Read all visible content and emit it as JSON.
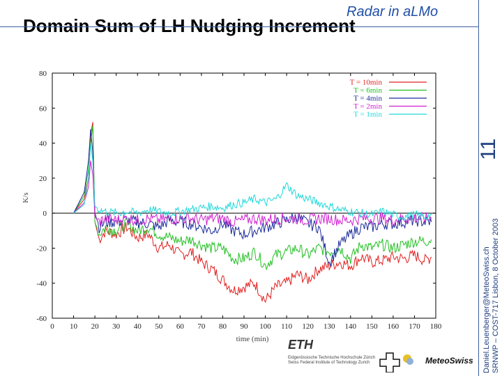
{
  "slide": {
    "title": "Domain Sum of LH Nudging Increment",
    "subtitle": "Radar in aLMo",
    "page_number": "11",
    "footer_email": "Daniel.Leuenberger@MeteoSwiss.ch",
    "footer_event": "SRNWP – COST-717 Lisbon, 8 October 2003",
    "logo_eth": "ETH",
    "logo_eth_sub1": "Eidgenössische Technische Hochschule Zürich",
    "logo_eth_sub2": "Swiss Federal Institute of Technology Zurich",
    "logo_meteoswiss": "MeteoSwiss"
  },
  "chart_data": {
    "type": "line",
    "title": "",
    "xlabel": "time (min)",
    "ylabel": "K/s",
    "xlim": [
      0,
      180
    ],
    "ylim": [
      -60,
      80
    ],
    "xticks": [
      0,
      10,
      20,
      30,
      40,
      50,
      60,
      70,
      80,
      90,
      100,
      110,
      120,
      130,
      140,
      150,
      160,
      170,
      180
    ],
    "yticks": [
      -60,
      -40,
      -20,
      0,
      20,
      40,
      60,
      80
    ],
    "legend_position": "top-right",
    "series": [
      {
        "name": "T = 10min",
        "color": "#e02020",
        "x": [
          10,
          15,
          17,
          18,
          19,
          20,
          22,
          25,
          30,
          35,
          40,
          45,
          50,
          55,
          60,
          65,
          70,
          75,
          80,
          85,
          90,
          95,
          100,
          105,
          110,
          115,
          120,
          125,
          130,
          135,
          140,
          145,
          150,
          155,
          160,
          165,
          170,
          175,
          178
        ],
        "y": [
          0,
          8,
          20,
          45,
          52,
          -5,
          -15,
          -10,
          -12,
          -8,
          -14,
          -12,
          -20,
          -18,
          -24,
          -22,
          -28,
          -32,
          -38,
          -44,
          -42,
          -40,
          -50,
          -42,
          -40,
          -35,
          -38,
          -32,
          -30,
          -28,
          -30,
          -25,
          -28,
          -27,
          -25,
          -26,
          -24,
          -27,
          -25
        ]
      },
      {
        "name": "T = 6min",
        "color": "#20c020",
        "x": [
          10,
          15,
          17,
          18,
          19,
          20,
          22,
          25,
          30,
          35,
          40,
          45,
          50,
          55,
          60,
          65,
          70,
          75,
          80,
          85,
          90,
          95,
          100,
          105,
          110,
          115,
          120,
          125,
          130,
          135,
          140,
          145,
          150,
          155,
          160,
          165,
          170,
          175,
          178
        ],
        "y": [
          0,
          10,
          25,
          40,
          50,
          -5,
          -12,
          -8,
          -10,
          -6,
          -10,
          -8,
          -12,
          -14,
          -16,
          -15,
          -18,
          -20,
          -20,
          -26,
          -26,
          -22,
          -30,
          -24,
          -22,
          -20,
          -24,
          -20,
          -22,
          -20,
          -26,
          -18,
          -20,
          -18,
          -20,
          -18,
          -16,
          -16,
          -15
        ]
      },
      {
        "name": "T = 4min",
        "color": "#1a2a9a",
        "x": [
          10,
          15,
          17,
          18,
          19,
          20,
          22,
          25,
          30,
          35,
          40,
          45,
          50,
          55,
          60,
          65,
          70,
          75,
          80,
          85,
          90,
          95,
          100,
          105,
          110,
          115,
          120,
          125,
          130,
          135,
          140,
          145,
          150,
          155,
          160,
          165,
          170,
          175,
          178
        ],
        "y": [
          0,
          12,
          30,
          48,
          35,
          0,
          -8,
          -5,
          -5,
          -4,
          -5,
          -6,
          -8,
          -4,
          -5,
          -6,
          -8,
          -10,
          -6,
          -10,
          -12,
          -10,
          -8,
          -6,
          -4,
          -2,
          -6,
          -8,
          -28,
          -18,
          -12,
          -8,
          -8,
          -6,
          -6,
          -5,
          -4,
          -5,
          -5
        ]
      },
      {
        "name": "T = 2min",
        "color": "#d020d0",
        "x": [
          10,
          15,
          17,
          18,
          19,
          20,
          22,
          25,
          30,
          35,
          40,
          45,
          50,
          55,
          60,
          65,
          70,
          75,
          80,
          85,
          90,
          95,
          100,
          105,
          110,
          115,
          120,
          125,
          130,
          135,
          140,
          145,
          150,
          155,
          160,
          165,
          170,
          175,
          178
        ],
        "y": [
          0,
          6,
          15,
          30,
          22,
          -2,
          -5,
          -3,
          -4,
          -3,
          -4,
          -3,
          -4,
          -3,
          -3,
          -3,
          -4,
          -3,
          -3,
          -5,
          -4,
          -3,
          -4,
          -3,
          -3,
          -3,
          -4,
          -3,
          -3,
          -4,
          -4,
          -3,
          -3,
          -3,
          -4,
          -3,
          -3,
          -3,
          -3
        ]
      },
      {
        "name": "T = 1min",
        "color": "#20d8d8",
        "x": [
          10,
          15,
          17,
          18,
          19,
          20,
          22,
          25,
          30,
          35,
          40,
          45,
          50,
          55,
          60,
          65,
          70,
          75,
          80,
          85,
          90,
          95,
          100,
          105,
          110,
          115,
          120,
          125,
          130,
          135,
          140,
          145,
          150,
          155,
          160,
          165,
          170,
          175,
          178
        ],
        "y": [
          0,
          5,
          20,
          40,
          30,
          4,
          2,
          1,
          0,
          1,
          0,
          2,
          1,
          0,
          1,
          2,
          3,
          4,
          3,
          5,
          6,
          8,
          6,
          8,
          16,
          10,
          8,
          6,
          4,
          2,
          1,
          0,
          -1,
          1,
          -1,
          -2,
          -1,
          -2,
          -1
        ]
      }
    ]
  }
}
